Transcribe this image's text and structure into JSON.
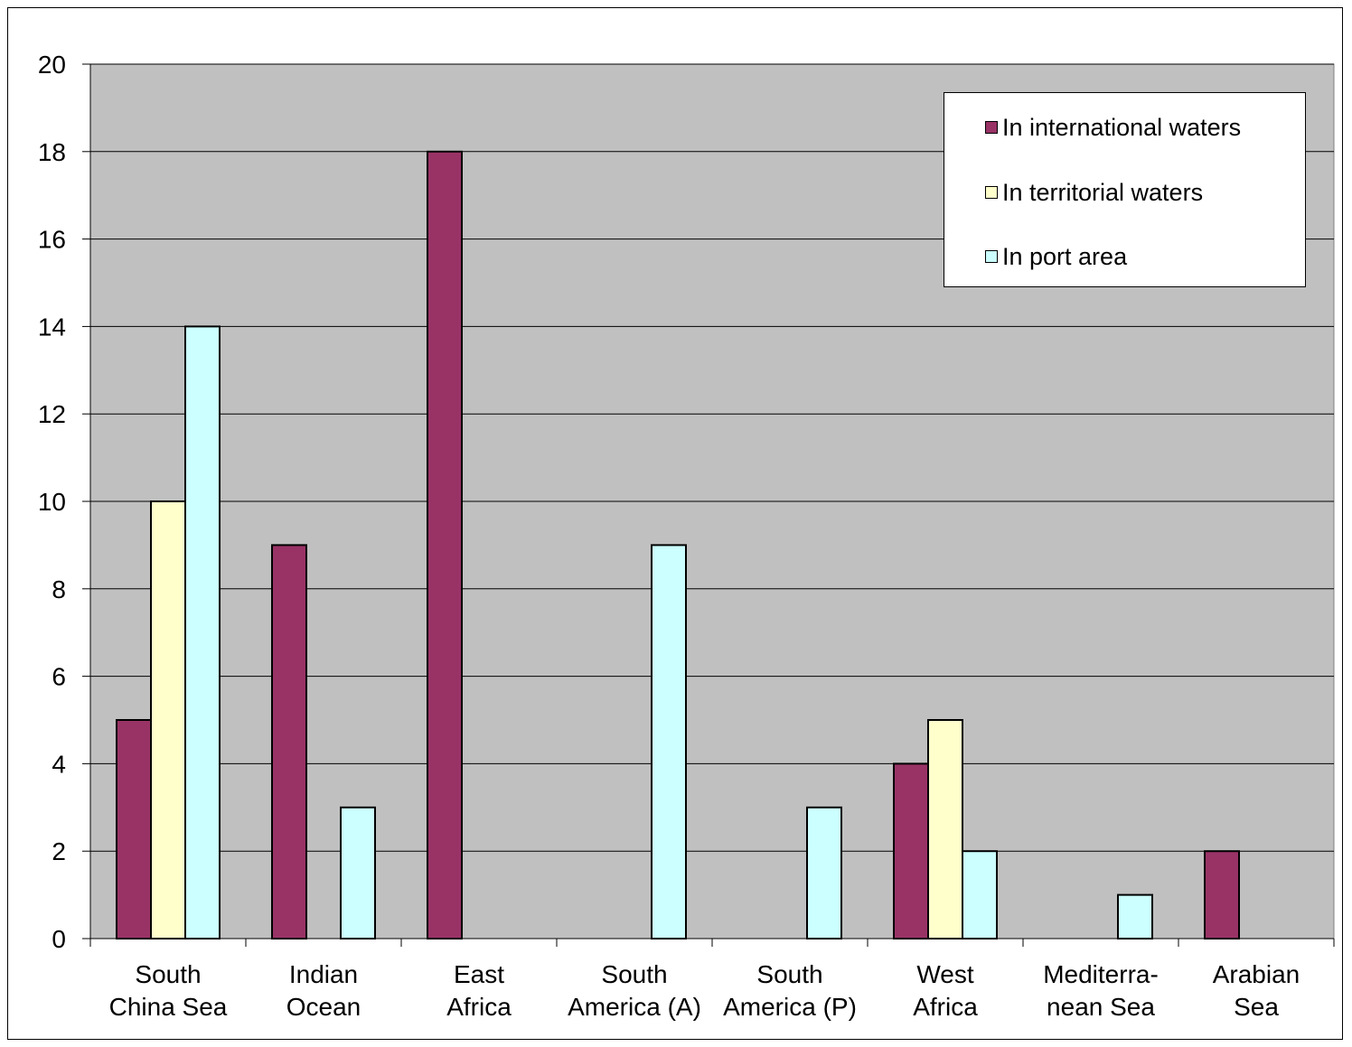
{
  "chart_data": {
    "type": "bar",
    "categories": [
      [
        "South",
        "China Sea"
      ],
      [
        "Indian",
        "Ocean"
      ],
      [
        "East",
        "Africa"
      ],
      [
        "South",
        "America (A)"
      ],
      [
        "South",
        "America (P)"
      ],
      [
        "West",
        "Africa"
      ],
      [
        "Mediterra-",
        "nean Sea"
      ],
      [
        "Arabian",
        "Sea"
      ]
    ],
    "series": [
      {
        "name": "In international waters",
        "color": "#993366",
        "values": [
          5,
          9,
          18,
          0,
          0,
          4,
          0,
          2
        ]
      },
      {
        "name": "In territorial waters",
        "color": "#FFFFCC",
        "values": [
          10,
          0,
          0,
          0,
          0,
          5,
          0,
          0
        ]
      },
      {
        "name": "In port area",
        "color": "#CCFFFF",
        "values": [
          14,
          3,
          0,
          9,
          3,
          2,
          1,
          0
        ]
      }
    ],
    "ylim": [
      0,
      20
    ],
    "yticks": [
      0,
      2,
      4,
      6,
      8,
      10,
      12,
      14,
      16,
      18,
      20
    ],
    "grid": true,
    "plot_background": "#C0C0C0",
    "legend_position": "top-right"
  }
}
